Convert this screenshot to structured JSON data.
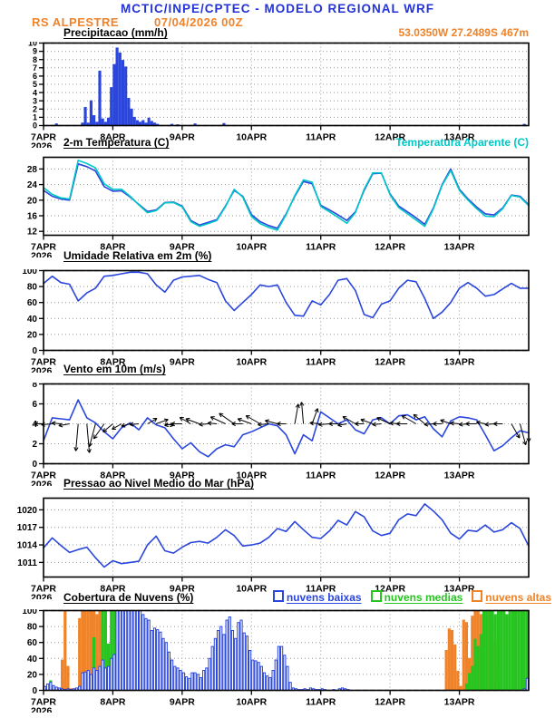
{
  "header": {
    "title": "MCTIC/INPE/CPTEC - MODELO REGIONAL WRF",
    "station": "RS ALPESTRE",
    "run": "07/04/2026 00Z",
    "coords": "53.0350W 27.2489S 467m"
  },
  "colors": {
    "title_blue": "#2333d6",
    "orange": "#f08228",
    "line_blue": "#2a46dd",
    "cyan": "#00c8c8",
    "green": "#27c520",
    "black": "#000000"
  },
  "x_axis": {
    "labels": [
      "7APR",
      "8APR",
      "9APR",
      "10APR",
      "11APR",
      "12APR",
      "13APR"
    ],
    "year": "2026",
    "range_days": [
      0,
      7
    ]
  },
  "chart_data": [
    {
      "id": "precipitation",
      "type": "bar",
      "title": "Precipitacao (mm/h)",
      "ylim": [
        0,
        10
      ],
      "yticks": [
        0,
        1,
        2,
        3,
        4,
        5,
        6,
        7,
        8,
        9,
        10
      ],
      "yfs": 9,
      "hours": 168,
      "bars": [
        {
          "name": "precipitacao",
          "color": "#2a46dd",
          "fill": true,
          "values": {
            "4": 0.2,
            "13": 0.3,
            "14": 2.2,
            "15": 0.3,
            "16": 3.0,
            "17": 1.2,
            "18": 0.4,
            "19": 6.6,
            "20": 0.8,
            "21": 0.4,
            "22": 0.9,
            "23": 4.6,
            "24": 7.4,
            "25": 9.4,
            "26": 8.8,
            "27": 7.9,
            "28": 7.1,
            "29": 3.3,
            "30": 2.0,
            "31": 1.0,
            "32": 0.6,
            "33": 0.4,
            "34": 0.6,
            "35": 0.3,
            "36": 0.9,
            "37": 0.5,
            "38": 0.3,
            "39": 0.15,
            "44": 0.15,
            "46": 0.1,
            "52": 0.2,
            "62": 0.25,
            "166": 0.15
          }
        }
      ]
    },
    {
      "id": "temperature",
      "type": "line",
      "title": "2-m Temperatura (C)",
      "legend": "Temperatura Aparente (C)",
      "ylim": [
        11,
        31
      ],
      "yticks": [
        12,
        16,
        20,
        24,
        28
      ],
      "x_step_hours": 3,
      "series": [
        {
          "name": "2-m Temperatura (C)",
          "color": "#2a46dd",
          "values": [
            22.5,
            21.0,
            20.3,
            20.0,
            29.3,
            28.6,
            27.5,
            23.5,
            22.3,
            22.4,
            20.8,
            18.9,
            17.1,
            17.5,
            19.4,
            19.5,
            18.5,
            14.8,
            13.6,
            14.3,
            15.0,
            18.5,
            22.5,
            21.0,
            16.3,
            14.5,
            13.5,
            12.8,
            16.5,
            21.0,
            24.8,
            24.2,
            18.7,
            17.5,
            16.2,
            14.8,
            17.0,
            22.5,
            26.8,
            26.9,
            21.6,
            18.5,
            17.0,
            15.5,
            13.8,
            18.0,
            24.0,
            28.0,
            22.8,
            20.3,
            18.2,
            16.5,
            16.2,
            18.0,
            21.3,
            21.0,
            18.8
          ]
        },
        {
          "name": "Temperatura Aparente (C)",
          "color": "#00c8c8",
          "values": [
            23.2,
            21.5,
            20.6,
            20.3,
            30.2,
            29.4,
            28.3,
            24.2,
            22.8,
            22.8,
            21.0,
            18.8,
            16.8,
            17.3,
            19.3,
            19.4,
            18.3,
            14.5,
            13.3,
            14.0,
            14.8,
            18.3,
            22.8,
            20.8,
            15.8,
            14.0,
            13.0,
            12.3,
            16.3,
            21.2,
            25.2,
            24.6,
            18.4,
            17.0,
            15.6,
            14.1,
            16.8,
            22.8,
            27.0,
            27.0,
            21.4,
            18.1,
            16.5,
            14.9,
            13.3,
            17.8,
            23.8,
            27.6,
            22.5,
            20.0,
            17.8,
            15.9,
            15.8,
            17.8,
            21.2,
            20.8,
            18.6
          ]
        }
      ]
    },
    {
      "id": "humidity",
      "type": "line",
      "title": "Umidade Relativa em 2m (%)",
      "ylim": [
        0,
        100
      ],
      "yticks": [
        0,
        20,
        40,
        60,
        80,
        100
      ],
      "x_step_hours": 3,
      "series": [
        {
          "name": "Umidade Relativa",
          "color": "#2a46dd",
          "values": [
            84,
            93,
            85,
            83,
            62,
            72,
            78,
            93,
            94,
            96,
            98,
            98,
            96,
            82,
            73,
            88,
            92,
            93,
            94,
            89,
            85,
            62,
            50,
            60,
            70,
            82,
            80,
            82,
            60,
            44,
            43,
            62,
            57,
            70,
            88,
            90,
            75,
            45,
            41,
            58,
            62,
            78,
            88,
            86,
            65,
            40,
            48,
            60,
            78,
            85,
            78,
            68,
            70,
            77,
            84,
            78,
            78
          ]
        }
      ]
    },
    {
      "id": "wind",
      "type": "line+barbs",
      "title": "Vento em 10m (m/s)",
      "ylim": [
        0,
        8
      ],
      "yticks": [
        0,
        2,
        4,
        6,
        8
      ],
      "x_step_hours": 3,
      "series": [
        {
          "name": "Vento em 10m",
          "color": "#2a46dd",
          "values": [
            2.3,
            4.6,
            4.5,
            4.4,
            6.4,
            4.6,
            4.1,
            3.2,
            2.5,
            3.6,
            4.1,
            3.4,
            4.6,
            3.9,
            3.6,
            2.5,
            1.5,
            2.1,
            1.2,
            0.7,
            1.5,
            1.9,
            1.7,
            2.9,
            3.2,
            3.6,
            4.0,
            3.8,
            2.9,
            1.0,
            2.9,
            2.3,
            5.2,
            4.6,
            4.0,
            4.4,
            3.4,
            3.0,
            4.4,
            4.6,
            4.0,
            4.8,
            4.9,
            4.4,
            4.7,
            3.5,
            2.7,
            4.3,
            4.7,
            4.6,
            4.4,
            2.9,
            1.3,
            1.8,
            2.6,
            3.3,
            3.1
          ]
        }
      ],
      "barbs": {
        "anchor": 4,
        "rot": [
          180,
          175,
          185,
          170,
          95,
          85,
          105,
          125,
          140,
          150,
          165,
          175,
          -30,
          -20,
          10,
          170,
          180,
          -150,
          -160,
          175,
          185,
          -155,
          -145,
          180,
          -160,
          -150,
          175,
          -165,
          180,
          -80,
          -95,
          -70,
          185,
          175,
          180,
          170,
          -150,
          180,
          -160,
          175,
          -155,
          185,
          180,
          -150,
          -140,
          175,
          180,
          -160,
          185,
          175,
          180,
          -170,
          175,
          180,
          60,
          75,
          90
        ],
        "len": [
          10,
          12,
          10,
          12,
          30,
          32,
          26,
          20,
          14,
          12,
          10,
          10,
          12,
          14,
          10,
          10,
          12,
          14,
          16,
          10,
          10,
          18,
          20,
          12,
          16,
          18,
          12,
          14,
          10,
          22,
          24,
          18,
          12,
          12,
          10,
          10,
          16,
          10,
          14,
          10,
          16,
          10,
          12,
          18,
          16,
          10,
          10,
          12,
          10,
          10,
          12,
          10,
          10,
          10,
          18,
          24,
          20
        ]
      }
    },
    {
      "id": "pressure",
      "type": "line",
      "title": "Pressao ao Nivel Medio do Mar (hPa)",
      "ylim": [
        1008.5,
        1022
      ],
      "yticks": [
        1011,
        1014,
        1017,
        1020
      ],
      "x_step_hours": 3,
      "series": [
        {
          "name": "Pressao ao Nivel Medio do Mar",
          "color": "#2a46dd",
          "values": [
            1013.5,
            1015.2,
            1013.9,
            1012.7,
            1013.2,
            1013.6,
            1011.8,
            1010.2,
            1011.3,
            1010.8,
            1011.0,
            1011.2,
            1014.0,
            1015.5,
            1013.0,
            1012.6,
            1013.6,
            1014.4,
            1014.6,
            1014.3,
            1015.3,
            1016.6,
            1015.6,
            1013.8,
            1014.0,
            1014.3,
            1015.3,
            1016.8,
            1016.3,
            1018.0,
            1016.6,
            1015.3,
            1015.1,
            1016.4,
            1018.2,
            1017.4,
            1019.7,
            1018.8,
            1016.4,
            1015.6,
            1016.0,
            1018.3,
            1019.3,
            1019.0,
            1021.0,
            1019.8,
            1018.3,
            1016.0,
            1015.0,
            1016.5,
            1016.3,
            1017.4,
            1016.2,
            1016.6,
            1017.8,
            1016.8,
            1013.8
          ]
        }
      ]
    },
    {
      "id": "clouds",
      "type": "bar",
      "title": "Cobertura de Nuvens (%)",
      "ylim": [
        0,
        100
      ],
      "yticks": [
        0,
        20,
        40,
        60,
        80,
        100
      ],
      "hours": 168,
      "legend": [
        {
          "label": "nuvens baixas",
          "color": "#2a46dd"
        },
        {
          "label": "nuvens medias",
          "color": "#27c520"
        },
        {
          "label": "nuvens altas",
          "color": "#f08228"
        }
      ],
      "bars": [
        {
          "name": "nuvens altas",
          "color": "#f08228",
          "fill": true,
          "values": {
            "6": 38,
            "7": 100,
            "8": 30,
            "9": 2,
            "12": 90,
            "13": 100,
            "14": 100,
            "15": 100,
            "16": 100,
            "17": 100,
            "18": 95,
            "19": 100,
            "20": 85,
            "21": 30,
            "22": 5,
            "139": 50,
            "140": 77,
            "141": 75,
            "142": 57,
            "143": 24,
            "144": 5,
            "145": 88,
            "146": 85,
            "147": 40,
            "148": 93,
            "149": 100,
            "150": 100,
            "151": 95,
            "152": 90,
            "153": 100,
            "154": 95,
            "155": 90,
            "156": 60,
            "157": 30
          }
        },
        {
          "name": "nuvens medias",
          "color": "#27c520",
          "fill": true,
          "values": {
            "2": 12,
            "17": 66,
            "20": 100,
            "21": 100,
            "22": 58,
            "23": 100,
            "24": 100,
            "25": 60,
            "146": 8,
            "147": 21,
            "148": 30,
            "149": 64,
            "150": 55,
            "151": 70,
            "152": 100,
            "153": 100,
            "154": 100,
            "155": 100,
            "156": 95,
            "157": 100,
            "158": 100,
            "159": 100,
            "160": 95,
            "161": 100,
            "162": 100,
            "163": 100,
            "164": 100,
            "165": 100,
            "166": 100,
            "167": 100
          }
        },
        {
          "name": "nuvens baixas",
          "color": "#2a46dd",
          "fill": false,
          "values": {
            "0": 5,
            "1": 8,
            "2": 10,
            "3": 6,
            "4": 4,
            "5": 3,
            "6": 2,
            "7": 1,
            "8": 2,
            "9": 1,
            "10": 2,
            "11": 3,
            "12": 5,
            "13": 22,
            "14": 23,
            "15": 25,
            "16": 20,
            "17": 28,
            "18": 25,
            "19": 30,
            "20": 38,
            "21": 28,
            "22": 30,
            "23": 40,
            "24": 45,
            "25": 100,
            "26": 100,
            "27": 100,
            "28": 100,
            "29": 100,
            "30": 100,
            "31": 100,
            "32": 100,
            "33": 100,
            "34": 95,
            "35": 90,
            "36": 88,
            "37": 75,
            "38": 78,
            "39": 76,
            "40": 73,
            "41": 65,
            "42": 60,
            "43": 48,
            "44": 38,
            "45": 30,
            "46": 28,
            "47": 25,
            "48": 22,
            "49": 17,
            "50": 15,
            "51": 22,
            "52": 22,
            "53": 20,
            "54": 16,
            "55": 25,
            "56": 28,
            "57": 40,
            "58": 55,
            "59": 65,
            "60": 75,
            "61": 80,
            "62": 70,
            "63": 88,
            "64": 92,
            "65": 75,
            "66": 65,
            "67": 85,
            "68": 88,
            "69": 72,
            "70": 68,
            "71": 50,
            "72": 38,
            "73": 37,
            "74": 35,
            "75": 30,
            "76": 22,
            "77": 18,
            "78": 16,
            "79": 25,
            "80": 38,
            "81": 55,
            "82": 55,
            "83": 44,
            "84": 30,
            "85": 10,
            "86": 3,
            "87": 2,
            "88": 1,
            "89": 1,
            "90": 2,
            "91": 1,
            "92": 3,
            "93": 2,
            "94": 1,
            "95": 1,
            "96": 2,
            "97": 1,
            "100": 1,
            "102": 2,
            "103": 3,
            "104": 2,
            "105": 1,
            "166": 2,
            "167": 15
          }
        }
      ]
    }
  ]
}
